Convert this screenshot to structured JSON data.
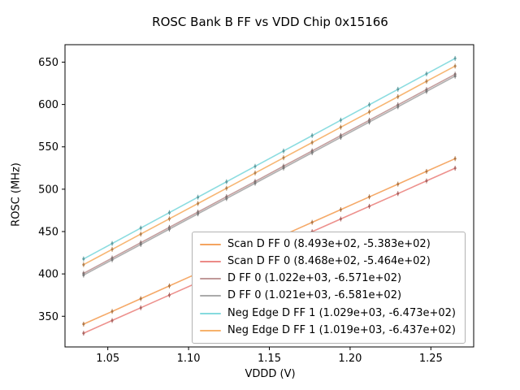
{
  "figure": {
    "title": "ROSC Bank B FF vs VDD Chip 0x15166",
    "xlabel": "VDDD (V)",
    "ylabel": "ROSC (MHz)"
  },
  "chart_data": {
    "type": "line",
    "title": "ROSC Bank B FF vs VDD Chip 0x15166",
    "xlabel": "VDDD (V)",
    "ylabel": "ROSC (MHz)",
    "grid": false,
    "legend_position": "lower center-right inside axes",
    "x_range": [
      1.0235,
      1.2765
    ],
    "y_range": [
      313.8,
      670.6
    ],
    "x_ticks": {
      "values": [
        1.05,
        1.1,
        1.15,
        1.2,
        1.25
      ],
      "labels": [
        "1.05",
        "1.10",
        "1.15",
        "1.20",
        "1.25"
      ]
    },
    "y_ticks": {
      "values": [
        350,
        400,
        450,
        500,
        550,
        600,
        650
      ],
      "labels": [
        "350",
        "400",
        "450",
        "500",
        "550",
        "600",
        "650"
      ]
    },
    "model": "ROSC_MHz = slope * VDDD + intercept (legend shows slope, intercept)",
    "x_points": [
      1.035,
      1.0527,
      1.0704,
      1.0881,
      1.1058,
      1.1235,
      1.1412,
      1.1588,
      1.1765,
      1.1942,
      1.2119,
      1.2296,
      1.2473,
      1.265
    ],
    "marker": "point-with-small-errorbar",
    "series": [
      {
        "name": "Scan D FF 0",
        "legend_label": "Scan D FF 0 (8.493e+02, -5.383e+02)",
        "slope": 849.3,
        "intercept": -538.3,
        "color": "#f4a460",
        "y_start": 340.7,
        "y_end": 536.1
      },
      {
        "name": "Scan D FF 0",
        "legend_label": "Scan D FF 0 (8.468e+02, -5.464e+02)",
        "slope": 846.8,
        "intercept": -546.4,
        "color": "#ec8b87",
        "y_start": 330.0,
        "y_end": 524.8
      },
      {
        "name": "D FF 0",
        "legend_label": "D FF 0 (1.022e+03, -6.571e+02)",
        "slope": 1022.0,
        "intercept": -657.1,
        "color": "#c09999",
        "y_start": 400.7,
        "y_end": 635.7
      },
      {
        "name": "D FF 0",
        "legend_label": "D FF 0 (1.021e+03, -6.581e+02)",
        "slope": 1021.0,
        "intercept": -658.1,
        "color": "#ababab",
        "y_start": 398.6,
        "y_end": 633.5
      },
      {
        "name": "Neg Edge D FF 1",
        "legend_label": "Neg Edge D FF 1 (1.029e+03, -6.473e+02)",
        "slope": 1029.0,
        "intercept": -647.3,
        "color": "#85dade",
        "y_start": 417.7,
        "y_end": 654.4
      },
      {
        "name": "Neg Edge D FF 1",
        "legend_label": "Neg Edge D FF 1 (1.019e+03, -6.437e+02)",
        "slope": 1019.0,
        "intercept": -643.7,
        "color": "#f7b26c",
        "y_start": 411.0,
        "y_end": 645.3
      }
    ]
  }
}
